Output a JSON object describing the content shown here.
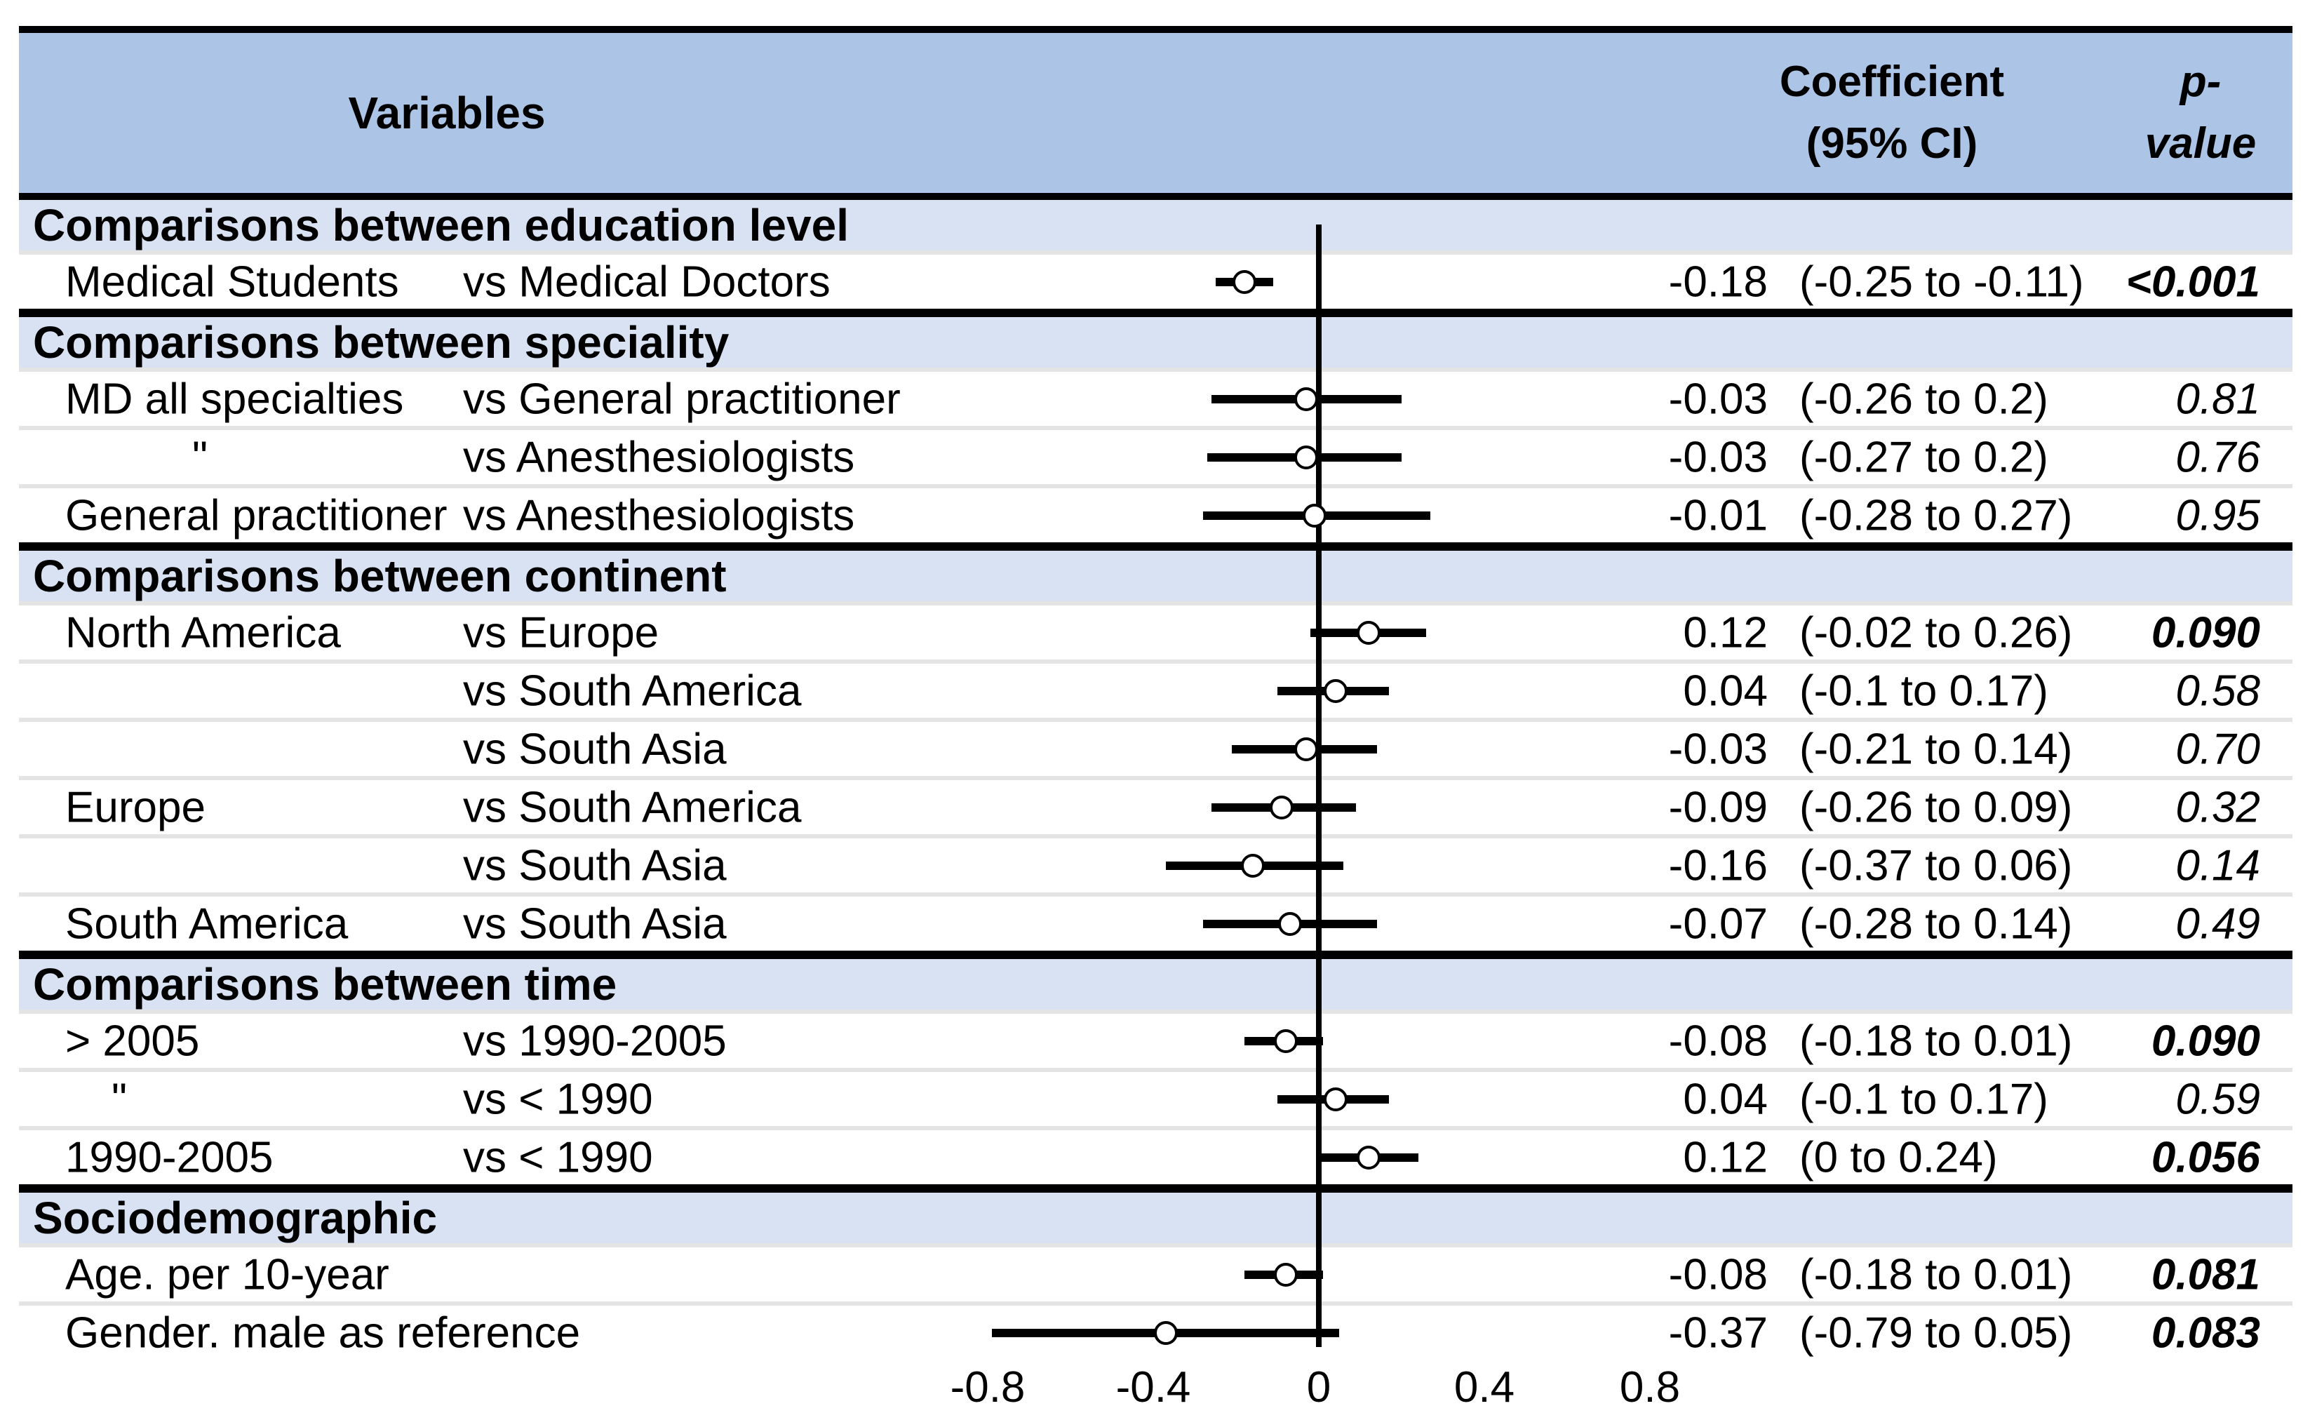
{
  "header": {
    "variables_label": "Variables",
    "coefficient_label_line1": "Coefficient",
    "coefficient_label_line2": "(95% CI)",
    "pvalue_label_line1": "p-",
    "pvalue_label_line2": "value"
  },
  "colors": {
    "header_band": "#acc4e6",
    "section_band": "#d8e2f2",
    "rule": "#000000",
    "row_separator": "#e4e4e4",
    "marker_fill": "#ffffff",
    "marker_outline": "#000000",
    "ci_bar": "#000000"
  },
  "chart_data": {
    "type": "scatter",
    "variant": "forest-plot",
    "x_axis": {
      "ticks": [
        -0.8,
        -0.4,
        0,
        0.4,
        0.8
      ],
      "tick_labels": [
        "-0.8",
        "-0.4",
        "0",
        "0.4",
        "0.8"
      ],
      "zero_line": 0,
      "xlim": [
        -0.95,
        0.85
      ],
      "grid": false
    },
    "sections": [
      {
        "title": "Comparisons between education level",
        "rows": [
          {
            "group": "Medical Students",
            "ditto": false,
            "comparison": "vs Medical Doctors",
            "estimate": -0.18,
            "ci_low": -0.25,
            "ci_high": -0.11,
            "coefficient_text": "-0.18",
            "ci_text": "(-0.25 to -0.11)",
            "p_value": "<0.001",
            "significant": true
          }
        ]
      },
      {
        "title": "Comparisons between speciality",
        "rows": [
          {
            "group": "MD all specialties",
            "ditto": false,
            "comparison": "vs General practitioner",
            "estimate": -0.03,
            "ci_low": -0.26,
            "ci_high": 0.2,
            "coefficient_text": "-0.03",
            "ci_text": "(-0.26 to 0.2)",
            "p_value": "0.81",
            "significant": false
          },
          {
            "group": "\"",
            "ditto": true,
            "comparison": "vs Anesthesiologists",
            "estimate": -0.03,
            "ci_low": -0.27,
            "ci_high": 0.2,
            "coefficient_text": "-0.03",
            "ci_text": "(-0.27 to 0.2)",
            "p_value": "0.76",
            "significant": false
          },
          {
            "group": "General practitioner",
            "ditto": false,
            "comparison": "vs Anesthesiologists",
            "estimate": -0.01,
            "ci_low": -0.28,
            "ci_high": 0.27,
            "coefficient_text": "-0.01",
            "ci_text": "(-0.28 to 0.27)",
            "p_value": "0.95",
            "significant": false
          }
        ]
      },
      {
        "title": "Comparisons between continent",
        "rows": [
          {
            "group": "North America",
            "ditto": false,
            "comparison": "vs Europe",
            "estimate": 0.12,
            "ci_low": -0.02,
            "ci_high": 0.26,
            "coefficient_text": "0.12",
            "ci_text": "(-0.02 to 0.26)",
            "p_value": "0.090",
            "significant": true
          },
          {
            "group": "",
            "ditto": false,
            "comparison": "vs South America",
            "estimate": 0.04,
            "ci_low": -0.1,
            "ci_high": 0.17,
            "coefficient_text": "0.04",
            "ci_text": "(-0.1 to 0.17)",
            "p_value": "0.58",
            "significant": false
          },
          {
            "group": "",
            "ditto": false,
            "comparison": "vs South Asia",
            "estimate": -0.03,
            "ci_low": -0.21,
            "ci_high": 0.14,
            "coefficient_text": "-0.03",
            "ci_text": "(-0.21 to 0.14)",
            "p_value": "0.70",
            "significant": false
          },
          {
            "group": "Europe",
            "ditto": false,
            "comparison": "vs South America",
            "estimate": -0.09,
            "ci_low": -0.26,
            "ci_high": 0.09,
            "coefficient_text": "-0.09",
            "ci_text": "(-0.26 to 0.09)",
            "p_value": "0.32",
            "significant": false
          },
          {
            "group": "",
            "ditto": false,
            "comparison": "vs South Asia",
            "estimate": -0.16,
            "ci_low": -0.37,
            "ci_high": 0.06,
            "coefficient_text": "-0.16",
            "ci_text": "(-0.37 to 0.06)",
            "p_value": "0.14",
            "significant": false
          },
          {
            "group": "South America",
            "ditto": false,
            "comparison": "vs South Asia",
            "estimate": -0.07,
            "ci_low": -0.28,
            "ci_high": 0.14,
            "coefficient_text": "-0.07",
            "ci_text": "(-0.28 to 0.14)",
            "p_value": "0.49",
            "significant": false
          }
        ]
      },
      {
        "title": "Comparisons between time",
        "rows": [
          {
            "group": "> 2005",
            "ditto": false,
            "comparison": "vs 1990-2005",
            "estimate": -0.08,
            "ci_low": -0.18,
            "ci_high": 0.01,
            "coefficient_text": "-0.08",
            "ci_text": "(-0.18 to 0.01)",
            "p_value": "0.090",
            "significant": true
          },
          {
            "group": "\"",
            "ditto": true,
            "comparison": "vs < 1990",
            "estimate": 0.04,
            "ci_low": -0.1,
            "ci_high": 0.17,
            "coefficient_text": "0.04",
            "ci_text": "(-0.1 to 0.17)",
            "p_value": "0.59",
            "significant": false
          },
          {
            "group": "1990-2005",
            "ditto": false,
            "comparison": "vs < 1990",
            "estimate": 0.12,
            "ci_low": 0,
            "ci_high": 0.24,
            "coefficient_text": "0.12",
            "ci_text": "(0 to 0.24)",
            "p_value": "0.056",
            "significant": true
          }
        ]
      },
      {
        "title": "Sociodemographic",
        "rows": [
          {
            "group": "Age. per 10-year",
            "ditto": false,
            "comparison": "",
            "estimate": -0.08,
            "ci_low": -0.18,
            "ci_high": 0.01,
            "coefficient_text": "-0.08",
            "ci_text": "(-0.18 to 0.01)",
            "p_value": "0.081",
            "significant": true
          },
          {
            "group": "Gender. male as reference",
            "ditto": false,
            "comparison": "",
            "estimate": -0.37,
            "ci_low": -0.79,
            "ci_high": 0.05,
            "coefficient_text": "-0.37",
            "ci_text": "(-0.79 to 0.05)",
            "p_value": "0.083",
            "significant": true
          }
        ]
      }
    ]
  }
}
